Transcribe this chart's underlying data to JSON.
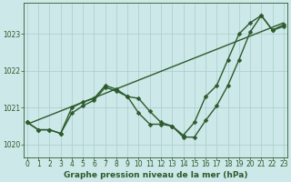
{
  "line1_y": [
    1020.6,
    1020.4,
    1020.4,
    1020.3,
    1020.85,
    1021.05,
    1021.2,
    1021.55,
    1021.45,
    1021.3,
    1020.85,
    1020.55,
    1020.55,
    1020.5,
    1020.2,
    1020.2,
    1020.65,
    1021.05,
    1021.6,
    1022.3,
    1023.05,
    1023.5,
    1023.1,
    1023.2
  ],
  "line2_y": [
    1020.6,
    1020.4,
    1020.4,
    1020.3,
    1021.0,
    1021.15,
    1021.25,
    1021.6,
    1021.5,
    1021.3,
    1021.25,
    1020.9,
    1020.6,
    1020.5,
    1020.25,
    1020.6,
    1021.3,
    1021.6,
    1022.3,
    1023.0,
    1023.3,
    1023.5,
    1023.1,
    1023.25
  ],
  "trend_x": [
    0,
    23
  ],
  "trend_y": [
    1020.55,
    1023.3
  ],
  "bg_color": "#cce8e8",
  "grid_color": "#aacccc",
  "line_color": "#2d5a2d",
  "xlim": [
    -0.3,
    23.3
  ],
  "ylim": [
    1019.65,
    1023.85
  ],
  "xticks": [
    0,
    1,
    2,
    3,
    4,
    5,
    6,
    7,
    8,
    9,
    10,
    11,
    12,
    13,
    14,
    15,
    16,
    17,
    18,
    19,
    20,
    21,
    22,
    23
  ],
  "yticks": [
    1020,
    1021,
    1022,
    1023
  ],
  "xlabel": "Graphe pression niveau de la mer (hPa)",
  "xlabel_fontsize": 6.5,
  "tick_fontsize": 5.5,
  "linewidth": 1.0,
  "markersize": 2.5
}
